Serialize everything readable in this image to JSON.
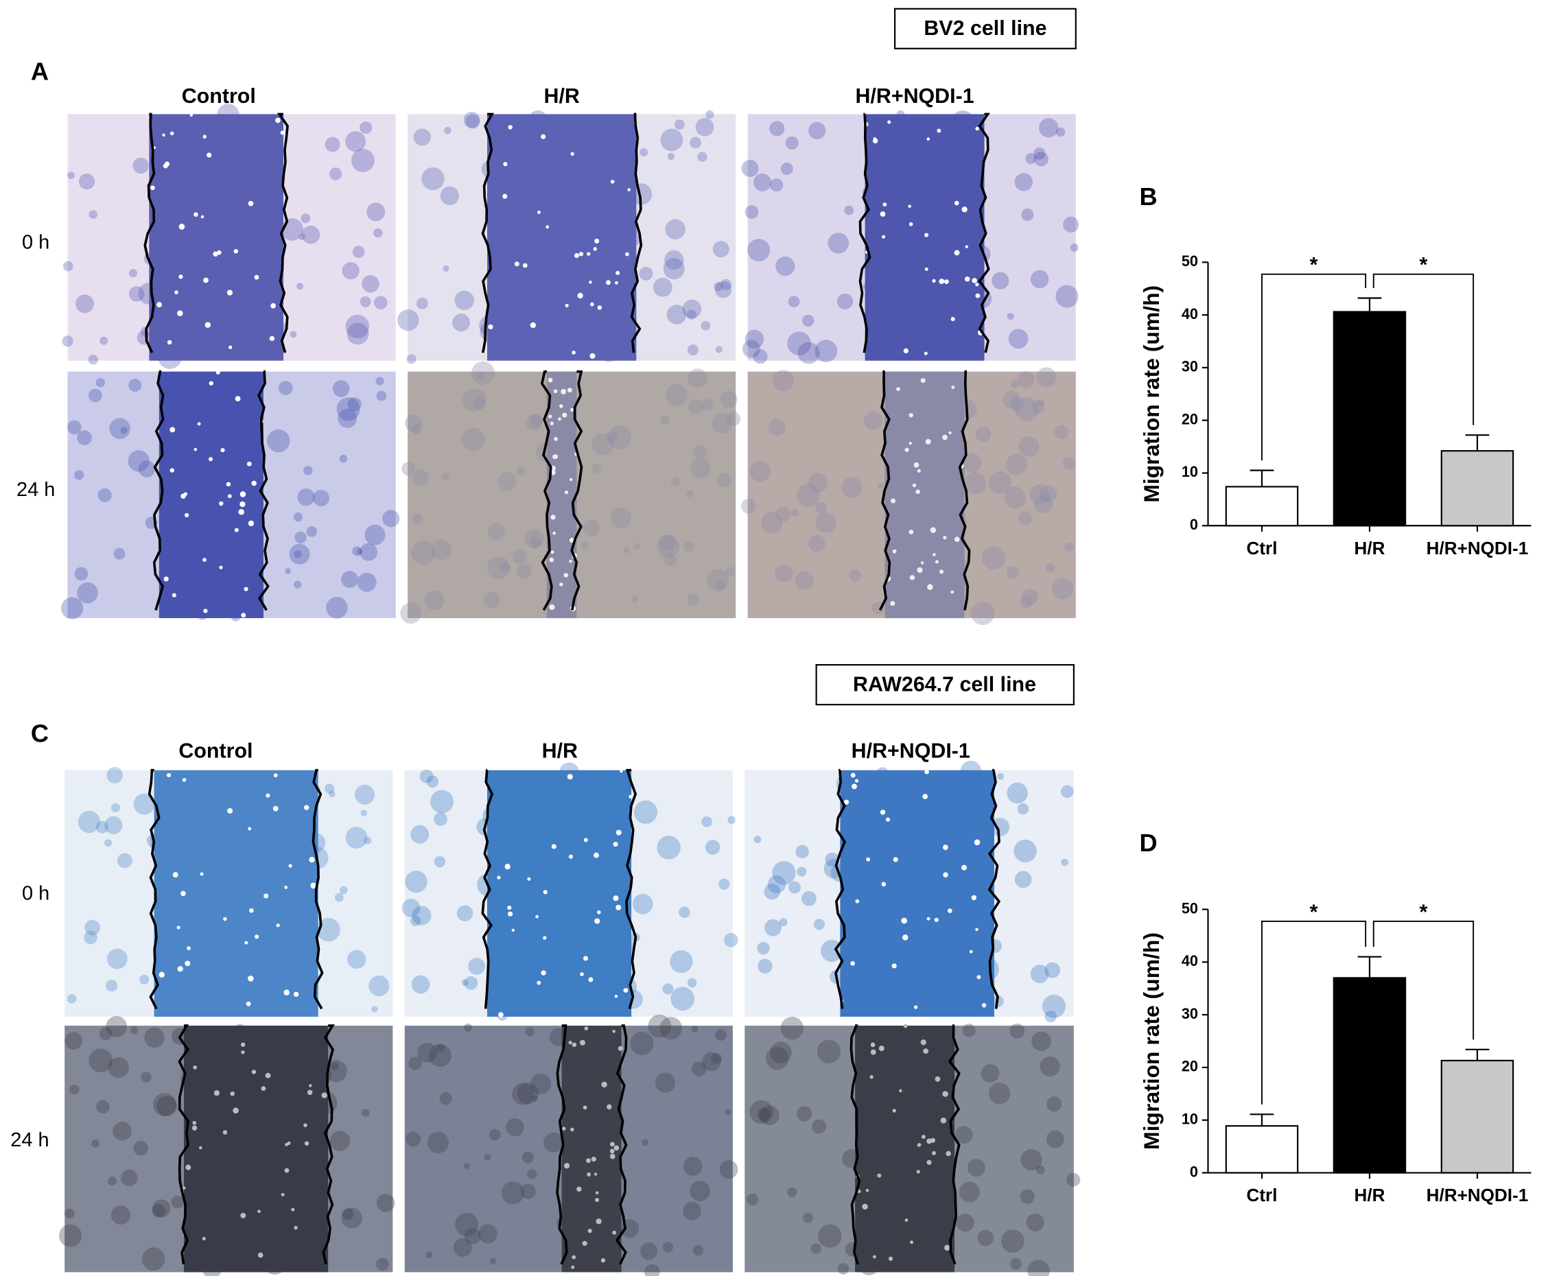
{
  "panels": [
    {
      "label": "A",
      "cell_line": "BV2 cell line",
      "columns": [
        "Control",
        "H/R",
        "H/R+NQDI-1"
      ],
      "rows": [
        "0 h",
        "24 h"
      ]
    },
    {
      "label": "C",
      "cell_line": "RAW264.7 cell line",
      "columns": [
        "Control",
        "H/R",
        "H/R+NQDI-1"
      ],
      "rows": [
        "0 h",
        "24 h"
      ]
    }
  ],
  "chart_data": [
    {
      "type": "bar",
      "panel_label": "B",
      "ylabel": "Migration rate (um/h)",
      "categories": [
        "Ctrl",
        "H/R",
        "H/R+NQDI-1"
      ],
      "values": [
        7.4,
        40.6,
        14.2
      ],
      "errors": [
        3.1,
        2.6,
        3.0
      ],
      "colors": [
        "#ffffff",
        "#000000",
        "#c8c8c8"
      ],
      "ylim": [
        0,
        50
      ],
      "yticks": [
        0,
        10,
        20,
        30,
        40,
        50
      ],
      "significance": [
        "*",
        "*"
      ]
    },
    {
      "type": "bar",
      "panel_label": "D",
      "ylabel": "Migration rate (um/h)",
      "categories": [
        "Ctrl",
        "H/R",
        "H/R+NQDI-1"
      ],
      "values": [
        8.9,
        37.0,
        21.3
      ],
      "errors": [
        2.2,
        4.0,
        2.1
      ],
      "colors": [
        "#ffffff",
        "#000000",
        "#c8c8c8"
      ],
      "ylim": [
        0,
        50
      ],
      "yticks": [
        0,
        10,
        20,
        30,
        40,
        50
      ],
      "significance": [
        "*",
        "*"
      ]
    }
  ]
}
